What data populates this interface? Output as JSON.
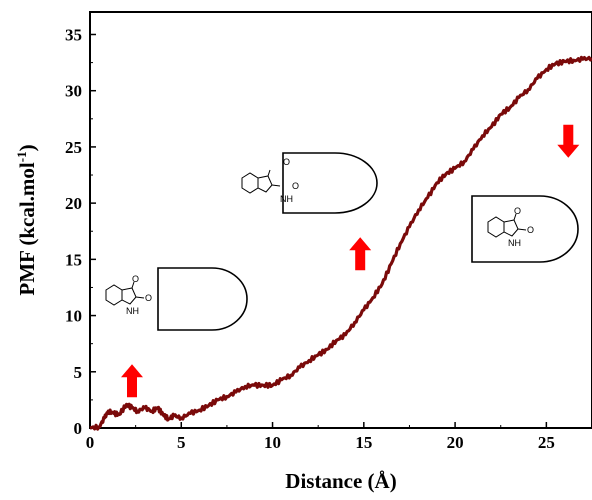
{
  "chart_data": {
    "type": "line",
    "xlabel": "Distance (Å)",
    "ylabel_main": "PMF (kcal.mol",
    "ylabel_sup": "-1",
    "ylabel_close": ")",
    "xlim": [
      0,
      27.5
    ],
    "ylim": [
      0,
      37
    ],
    "xticks": [
      0,
      5,
      10,
      15,
      20,
      25
    ],
    "yticks": [
      0,
      5,
      10,
      15,
      20,
      25,
      30,
      35
    ],
    "series": [
      {
        "color": "#7a0a0a",
        "x": [
          0,
          0.5,
          0.8,
          1.0,
          1.3,
          1.6,
          2.0,
          2.3,
          2.6,
          3.0,
          3.4,
          3.7,
          4.0,
          4.3,
          4.6,
          5.0,
          5.5,
          6.0,
          6.5,
          7.0,
          7.5,
          8.0,
          8.5,
          9.0,
          9.5,
          10.0,
          10.5,
          11.0,
          11.5,
          12.0,
          12.5,
          13.0,
          13.5,
          14.0,
          14.5,
          15.0,
          15.5,
          16.0,
          16.5,
          17.0,
          17.5,
          18.0,
          18.5,
          19.0,
          19.5,
          20.0,
          20.5,
          21.0,
          21.5,
          22.0,
          22.5,
          23.0,
          23.5,
          24.0,
          24.5,
          25.0,
          25.5,
          26.0,
          26.5,
          27.0,
          27.5
        ],
        "y": [
          0.0,
          0.1,
          0.9,
          1.5,
          1.3,
          1.2,
          2.1,
          1.8,
          1.5,
          1.8,
          1.5,
          1.8,
          1.2,
          0.8,
          1.1,
          0.9,
          1.3,
          1.6,
          2.0,
          2.5,
          2.8,
          3.2,
          3.7,
          3.8,
          3.8,
          3.8,
          4.3,
          4.7,
          5.4,
          6.0,
          6.5,
          7.0,
          7.8,
          8.3,
          9.4,
          10.5,
          11.6,
          12.8,
          14.6,
          16.4,
          17.9,
          19.4,
          20.5,
          21.8,
          22.6,
          23.1,
          23.7,
          24.8,
          26.0,
          26.8,
          27.9,
          28.5,
          29.4,
          30.1,
          31.1,
          31.9,
          32.4,
          32.6,
          32.7,
          32.8,
          32.9
        ]
      }
    ],
    "annotations": [
      {
        "type": "up-arrow",
        "x": 2.3,
        "y": 4.2,
        "color": "#ff0000"
      },
      {
        "type": "up-arrow",
        "x": 14.8,
        "y": 15.5,
        "color": "#ff0000"
      },
      {
        "type": "down-arrow",
        "x": 26.2,
        "y": 25.5,
        "color": "#ff0000"
      }
    ],
    "molecule_labels": {
      "oxygen": "O",
      "nitrogen_h": "NH"
    }
  }
}
